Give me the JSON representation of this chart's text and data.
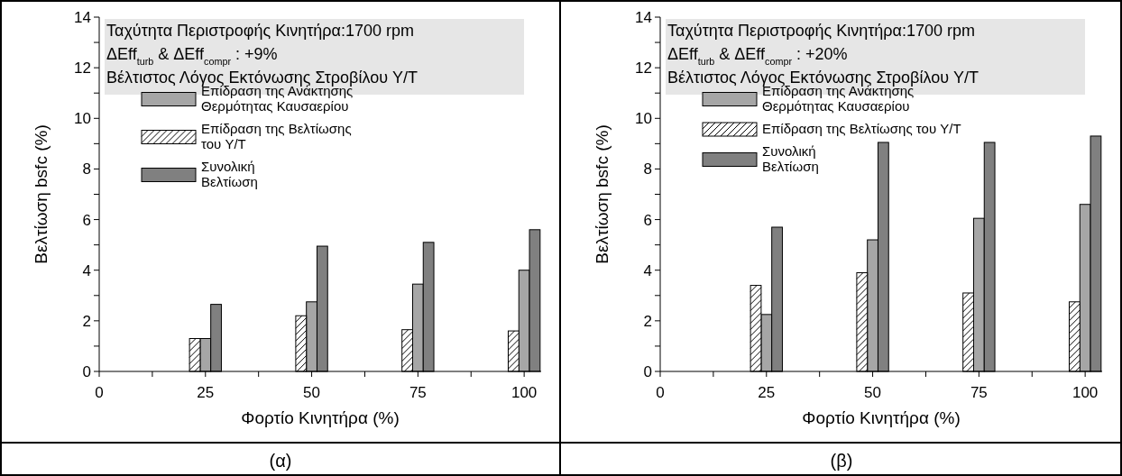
{
  "chart_data": [
    {
      "type": "bar",
      "xlabel": "Φορτίο Κινητήρα (%)",
      "ylabel": "Βελτίωση bsfc (%)",
      "xlim": [
        0,
        104
      ],
      "xticks": [
        0,
        {
          "value": 12.5,
          "label": null
        },
        25,
        {
          "value": 37.5,
          "label": null
        },
        50,
        {
          "value": 62.5,
          "label": null
        },
        75,
        {
          "value": 87.5,
          "label": null
        },
        100
      ],
      "ylim": [
        0,
        14
      ],
      "yticks": [
        0,
        {
          "value": 1,
          "label": null
        },
        2,
        {
          "value": 3,
          "label": null
        },
        4,
        {
          "value": 5,
          "label": null
        },
        6,
        {
          "value": 7,
          "label": null
        },
        8,
        {
          "value": 9,
          "label": null
        },
        10,
        {
          "value": 11,
          "label": null
        },
        12,
        {
          "value": 13,
          "label": null
        },
        14
      ],
      "grid": false,
      "legend": "top left",
      "annotations": [
        "Ταχύτητα Περιστροφής Κινητήρα:1700 rpm",
        "ΔEff$_{turb}$ & ΔEff$_{compr}$ : +9%",
        "Βέλτιστος Λόγος Εκτόνωσης Στροβίλου Y/T",
        "(α)"
      ],
      "series": [
        {
          "name": "Επίδραση της Ανάκτησης\nΘερμότητας Καυσαερίου",
          "color": "#a6a6a6",
          "x": [
            25,
            50,
            75,
            100
          ],
          "values": [
            1.3,
            2.75,
            3.45,
            4.0
          ]
        },
        {
          "name": "Επίδραση της Βελτίωσης\nτου Y/T",
          "color": "#ffffff",
          "x": [
            22.5,
            47.5,
            72.5,
            97.5
          ],
          "values": [
            1.3,
            2.2,
            1.65,
            1.6
          ]
        },
        {
          "name": "Συνολική\nΒελτίωση",
          "color": "#808080",
          "x": [
            27.5,
            52.5,
            77.5,
            102.5
          ],
          "values": [
            2.65,
            4.95,
            5.1,
            5.6
          ]
        }
      ]
    },
    {
      "type": "bar",
      "xlabel": "Φορτίο Κινητήρα (%)",
      "ylabel": "Βελτίωση bsfc (%)",
      "xlim": [
        0,
        104
      ],
      "xticks": [
        0,
        {
          "value": 12.5,
          "label": null
        },
        25,
        {
          "value": 37.5,
          "label": null
        },
        50,
        {
          "value": 62.5,
          "label": null
        },
        75,
        {
          "value": 87.5,
          "label": null
        },
        100
      ],
      "ylim": [
        0,
        14
      ],
      "yticks": [
        0,
        {
          "value": 1,
          "label": null
        },
        2,
        {
          "value": 3,
          "label": null
        },
        4,
        {
          "value": 5,
          "label": null
        },
        6,
        {
          "value": 7,
          "label": null
        },
        8,
        {
          "value": 9,
          "label": null
        },
        10,
        {
          "value": 11,
          "label": null
        },
        12,
        {
          "value": 13,
          "label": null
        },
        14
      ],
      "grid": false,
      "legend": "top left",
      "annotations": [
        "Ταχύτητα Περιστροφής Κινητήρα:1700 rpm",
        "ΔEff$_{turb}$ & ΔEff$_{compr}$ : +20%",
        "Βέλτιστος Λόγος Εκτόνωσης Στροβίλου Y/T",
        "(β)"
      ],
      "series": [
        {
          "name": "Επίδραση της Ανάκτησης\nΘερμότητας Καυσαερίου",
          "color": "#a6a6a6",
          "x": [
            25,
            50,
            75,
            100
          ],
          "values": [
            2.25,
            5.2,
            6.05,
            6.6
          ]
        },
        {
          "name": "Επίδραση της Βελτίωσης του Y/T",
          "color": "#ffffff",
          "x": [
            22.5,
            47.5,
            72.5,
            97.5
          ],
          "values": [
            3.4,
            3.9,
            3.1,
            2.75
          ]
        },
        {
          "name": "Συνολική\nΒελτίωση",
          "color": "#808080",
          "x": [
            27.5,
            52.5,
            77.5,
            102.5
          ],
          "values": [
            5.7,
            9.05,
            9.05,
            9.3
          ]
        }
      ]
    }
  ]
}
